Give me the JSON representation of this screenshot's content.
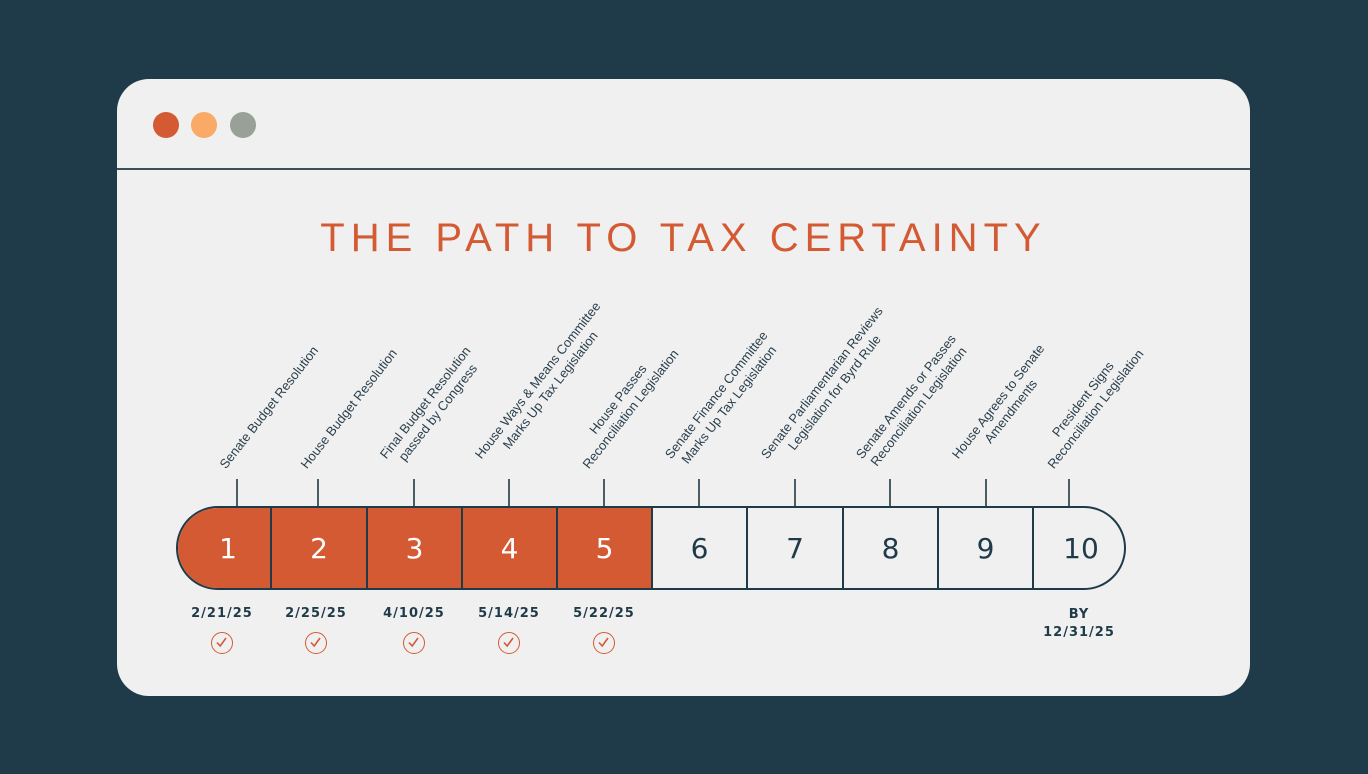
{
  "window": {
    "controls": [
      {
        "name": "close",
        "color": "#d45a33"
      },
      {
        "name": "minimize",
        "color": "#f9aa66"
      },
      {
        "name": "maximize",
        "color": "#98a097"
      }
    ]
  },
  "title": "THE PATH TO TAX CERTAINTY",
  "colors": {
    "background": "#1f3a48",
    "card": "#f0f0f0",
    "accent": "#d45a33",
    "text": "#1f3a48"
  },
  "steps": [
    {
      "number": "1",
      "lines": [
        "Senate Budget Resolution"
      ],
      "date": "2/21/25",
      "completed": true
    },
    {
      "number": "2",
      "lines": [
        "House Budget Resolution"
      ],
      "date": "2/25/25",
      "completed": true
    },
    {
      "number": "3",
      "lines": [
        "Final Budget Resolution",
        "passed by Congress"
      ],
      "date": "4/10/25",
      "completed": true
    },
    {
      "number": "4",
      "lines": [
        "House Ways & Means Committee",
        "Marks Up Tax Legislation"
      ],
      "date": "5/14/25",
      "completed": true
    },
    {
      "number": "5",
      "lines": [
        "House Passes",
        "Reconciliation Legislation"
      ],
      "date": "5/22/25",
      "completed": true
    },
    {
      "number": "6",
      "lines": [
        "Senate Finance Committee",
        "Marks Up Tax Legislation"
      ],
      "date": "",
      "completed": false
    },
    {
      "number": "7",
      "lines": [
        "Senate Parliamentarian Reviews",
        "Legislation for Byrd Rule"
      ],
      "date": "",
      "completed": false
    },
    {
      "number": "8",
      "lines": [
        "Senate Amends or Passes",
        "Reconciliation Legislation"
      ],
      "date": "",
      "completed": false
    },
    {
      "number": "9",
      "lines": [
        "House Agrees to Senate",
        "Amendments"
      ],
      "date": "",
      "completed": false
    },
    {
      "number": "10",
      "lines": [
        "President Signs",
        "Reconciliation Legislation"
      ],
      "date": "",
      "completed": false
    }
  ],
  "deadline": {
    "prefix": "BY",
    "date": "12/31/25"
  }
}
